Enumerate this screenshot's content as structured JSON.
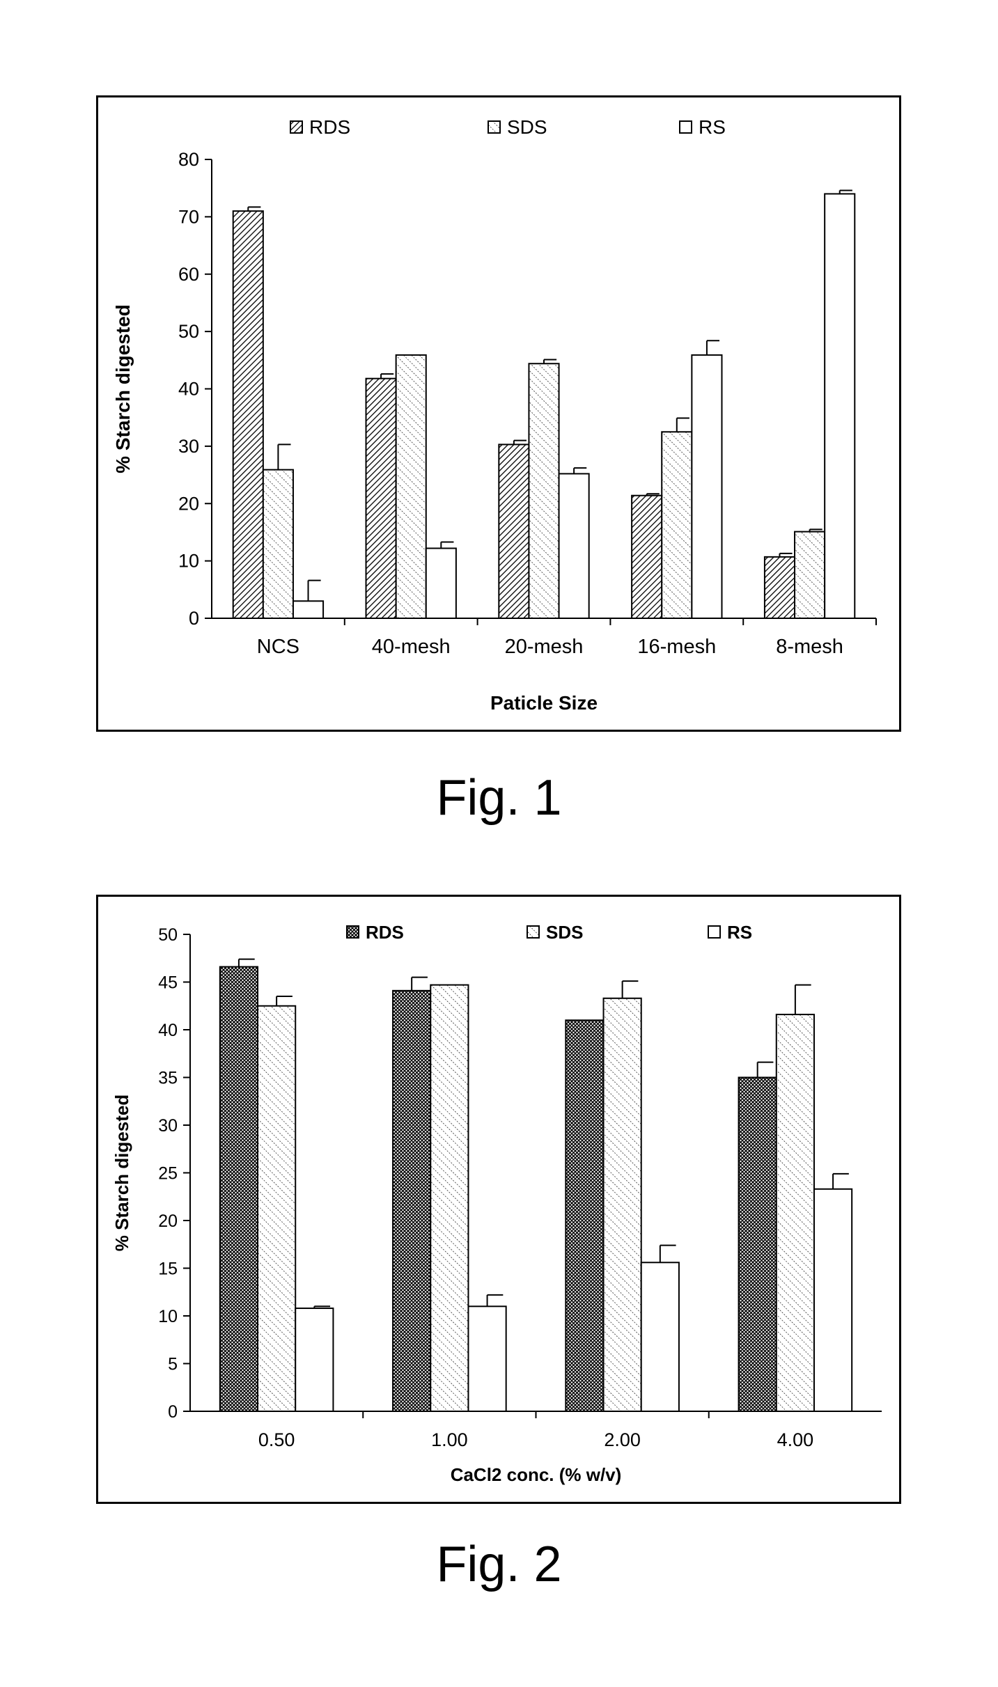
{
  "figures": [
    {
      "caption": "Fig. 1",
      "chart_data": {
        "type": "bar",
        "title": "",
        "xlabel": "Paticle Size",
        "ylabel": "% Starch digested",
        "ylim": [
          0,
          80
        ],
        "yticks": [
          0,
          10,
          20,
          30,
          40,
          50,
          60,
          70,
          80
        ],
        "categories": [
          "NCS",
          "40-mesh",
          "20-mesh",
          "16-mesh",
          "8-mesh"
        ],
        "legend_position": "top",
        "grid": false,
        "series": [
          {
            "name": "RDS",
            "pattern": "dense-diagonal",
            "values": [
              71.0,
              41.8,
              30.3,
              21.4,
              10.7
            ],
            "errors": [
              0.7,
              0.8,
              0.7,
              0.3,
              0.6
            ]
          },
          {
            "name": "SDS",
            "pattern": "sparse-diagonal",
            "values": [
              25.9,
              45.9,
              44.4,
              32.5,
              15.1
            ],
            "errors": [
              4.4,
              0.0,
              0.7,
              2.4,
              0.4
            ]
          },
          {
            "name": "RS",
            "pattern": "none",
            "values": [
              3.0,
              12.2,
              25.2,
              45.9,
              74.0
            ],
            "errors": [
              3.6,
              1.1,
              1.0,
              2.5,
              0.6
            ]
          }
        ]
      }
    },
    {
      "caption": "Fig. 2",
      "chart_data": {
        "type": "bar",
        "title": "",
        "xlabel": "CaCl2 conc. (% w/v)",
        "ylabel": "% Starch digested",
        "ylim": [
          0,
          50
        ],
        "yticks": [
          0,
          5,
          10,
          15,
          20,
          25,
          30,
          35,
          40,
          45,
          50
        ],
        "categories": [
          "0.50",
          "1.00",
          "2.00",
          "4.00"
        ],
        "legend_position": "top",
        "grid": false,
        "series": [
          {
            "name": "RDS",
            "pattern": "crosshatch",
            "values": [
              46.6,
              44.1,
              41.0,
              35.0
            ],
            "errors": [
              0.8,
              1.4,
              0.0,
              1.6
            ]
          },
          {
            "name": "SDS",
            "pattern": "sparse-diagonal",
            "values": [
              42.5,
              44.7,
              43.3,
              41.6
            ],
            "errors": [
              1.0,
              0.0,
              1.8,
              3.1
            ]
          },
          {
            "name": "RS",
            "pattern": "none",
            "values": [
              10.8,
              11.0,
              15.6,
              23.3
            ],
            "errors": [
              0.2,
              1.2,
              1.8,
              1.6
            ]
          }
        ]
      }
    }
  ]
}
